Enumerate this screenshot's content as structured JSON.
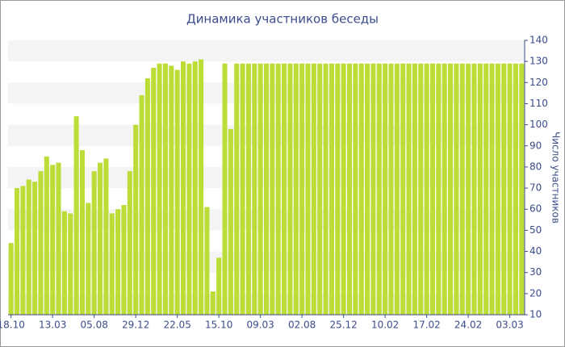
{
  "chart_data": {
    "type": "bar",
    "title": "Динамика участников беседы",
    "y_axis_label": "Число участников",
    "categories": [
      "18.10",
      null,
      null,
      null,
      null,
      null,
      null,
      "13.03",
      null,
      null,
      null,
      null,
      null,
      null,
      "05.08",
      null,
      null,
      null,
      null,
      null,
      null,
      "29.12",
      null,
      null,
      null,
      null,
      null,
      null,
      "22.05",
      null,
      null,
      null,
      null,
      null,
      null,
      "15.10",
      null,
      null,
      null,
      null,
      null,
      null,
      "09.03",
      null,
      null,
      null,
      null,
      null,
      null,
      "02.08",
      null,
      null,
      null,
      null,
      null,
      null,
      "25.12",
      null,
      null,
      null,
      null,
      null,
      null,
      "10.02",
      null,
      null,
      null,
      null,
      null,
      null,
      "17.02",
      null,
      null,
      null,
      null,
      null,
      null,
      "24.02",
      null,
      null,
      null,
      null,
      null,
      null,
      "03.03",
      null,
      null
    ],
    "values": [
      44,
      70,
      71,
      74,
      73,
      78,
      85,
      81,
      82,
      59,
      58,
      104,
      88,
      63,
      78,
      82,
      84,
      58,
      60,
      62,
      78,
      100,
      114,
      122,
      127,
      129,
      129,
      128,
      126,
      130,
      129,
      130,
      131,
      61,
      21,
      37,
      129,
      98,
      129,
      129,
      129,
      129,
      129,
      129,
      129,
      129,
      129,
      129,
      129,
      129,
      129,
      129,
      129,
      129,
      129,
      129,
      129,
      129,
      129,
      129,
      129,
      129,
      129,
      129,
      129,
      129,
      129,
      129,
      129,
      129,
      129,
      129,
      129,
      129,
      129,
      129,
      129,
      129,
      129,
      129,
      129,
      129,
      129,
      129,
      129,
      129,
      129
    ],
    "color": "#bcdc37",
    "ylim": [
      10,
      140
    ],
    "yticks": [
      10,
      20,
      30,
      40,
      50,
      60,
      70,
      80,
      90,
      100,
      110,
      120,
      130,
      140
    ],
    "y_axis_side": "right",
    "grid": "bands"
  }
}
